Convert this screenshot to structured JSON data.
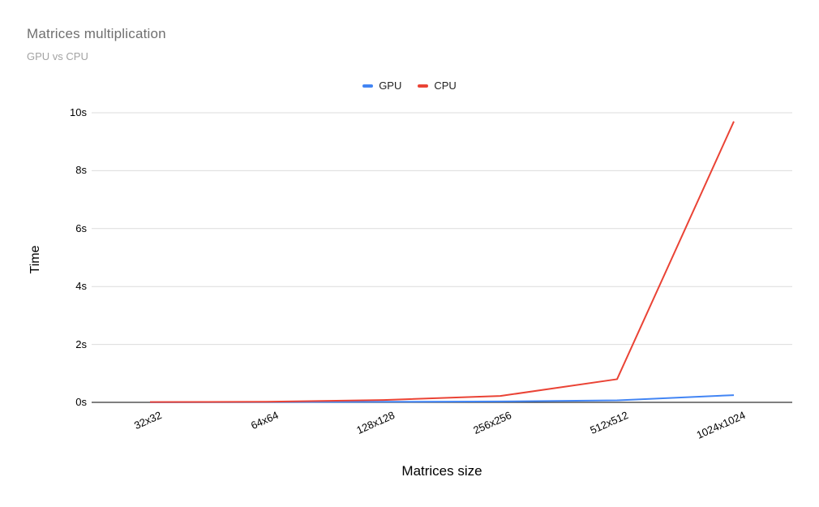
{
  "header": {
    "title": "Matrices multiplication",
    "subtitle": "GPU vs CPU"
  },
  "chart_data": {
    "type": "line",
    "title": "Matrices multiplication",
    "subtitle": "GPU vs CPU",
    "categories": [
      "32x32",
      "64x64",
      "128x128",
      "256x256",
      "512x512",
      "1024x1024"
    ],
    "series": [
      {
        "name": "GPU",
        "color": "#4285F4",
        "values": [
          0.005,
          0.01,
          0.02,
          0.03,
          0.07,
          0.25
        ]
      },
      {
        "name": "CPU",
        "color": "#EA4335",
        "values": [
          0.01,
          0.02,
          0.08,
          0.22,
          0.8,
          9.7
        ]
      }
    ],
    "xlabel": "Matrices size",
    "ylabel": "Time",
    "ylim": [
      0,
      10
    ],
    "yticks": [
      {
        "value": 0,
        "label": "0s"
      },
      {
        "value": 2,
        "label": "2s"
      },
      {
        "value": 4,
        "label": "4s"
      },
      {
        "value": 6,
        "label": "6s"
      },
      {
        "value": 8,
        "label": "8s"
      },
      {
        "value": 10,
        "label": "10s"
      }
    ],
    "grid": true,
    "legend_position": "top",
    "colors": {
      "gridline": "#dcdcdc",
      "baseline": "#333333",
      "axis_text": "#000000",
      "title_text": "#6f6f6f",
      "subtitle_text": "#a3a3a3"
    }
  }
}
